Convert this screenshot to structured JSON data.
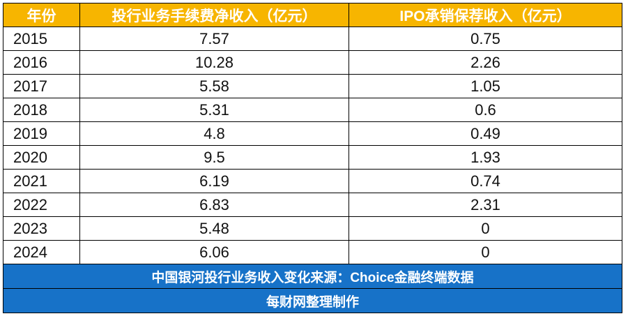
{
  "colors": {
    "header_bg": "#F7B500",
    "header_text": "#FFFFFF",
    "footer_bg": "#1772C8",
    "footer_text": "#FFFFFF",
    "border": "#000000"
  },
  "chart_data": {
    "type": "table",
    "columns": [
      "年份",
      "投行业务手续费净收入（亿元）",
      "IPO承销保荐收入（亿元）"
    ],
    "rows": [
      [
        "2015",
        "7.57",
        "0.75"
      ],
      [
        "2016",
        "10.28",
        "2.26"
      ],
      [
        "2017",
        "5.58",
        "1.05"
      ],
      [
        "2018",
        "5.31",
        "0.6"
      ],
      [
        "2019",
        "4.8",
        "0.49"
      ],
      [
        "2020",
        "9.5",
        "1.93"
      ],
      [
        "2021",
        "6.19",
        "0.74"
      ],
      [
        "2022",
        "6.83",
        "2.31"
      ],
      [
        "2023",
        "5.48",
        "0"
      ],
      [
        "2024",
        "6.06",
        "0"
      ]
    ],
    "footer": [
      "中国银河投行业务收入变化来源：Choice金融终端数据",
      "每财网整理制作"
    ]
  }
}
